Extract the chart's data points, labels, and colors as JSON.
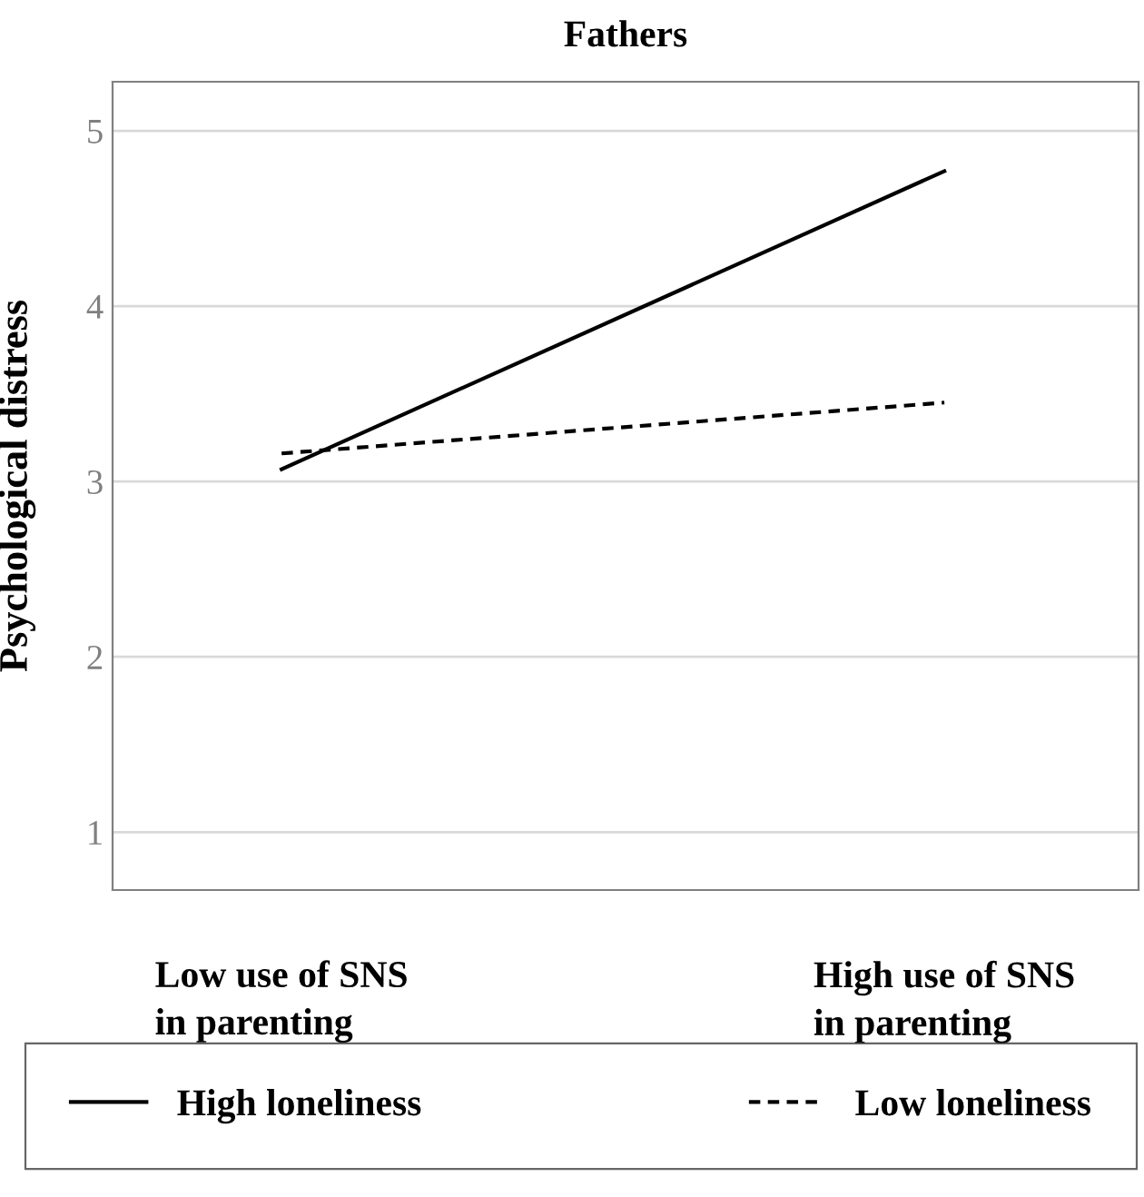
{
  "chart_data": {
    "type": "line",
    "title": "Fathers",
    "ylabel": "Psychological distress",
    "categories": [
      "Low use of SNS\nin parenting",
      "High use of SNS\nin parenting"
    ],
    "series": [
      {
        "name": "High loneliness",
        "color": "#000000",
        "values": [
          3.07,
          4.77
        ],
        "line_style": "solid"
      },
      {
        "name": "Low loneliness",
        "color": "#000000",
        "values": [
          3.16,
          3.45
        ],
        "line_style": "dashed"
      }
    ],
    "ylim": [
      0.67,
      5.28
    ],
    "yticks": [
      1,
      2,
      3,
      4,
      5
    ],
    "grid": "y",
    "legend": "bottom",
    "marker": "none"
  }
}
